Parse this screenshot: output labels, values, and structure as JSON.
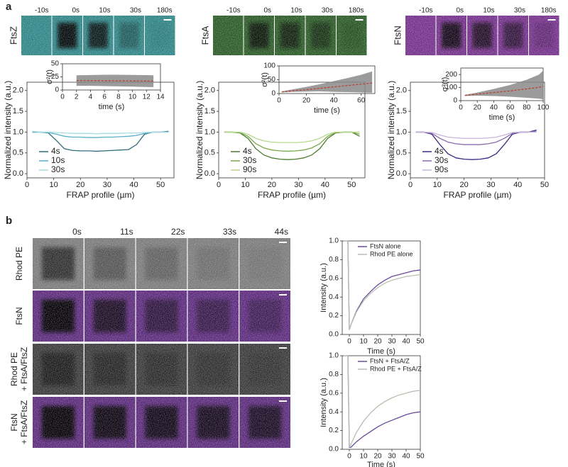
{
  "figure": {
    "panel_labels": [
      "a",
      "b"
    ],
    "panel_a": [
      {
        "name": "FtsZ",
        "color": "#3aa0a4",
        "base": "#2f8486",
        "times": [
          "-10s",
          "0s",
          "10s",
          "30s",
          "180s"
        ]
      },
      {
        "name": "FtsA",
        "color": "#4f8f3a",
        "base": "#2a5a26",
        "times": [
          "-10s",
          "0s",
          "10s",
          "30s",
          "180s"
        ]
      },
      {
        "name": "FtsN",
        "color": "#8a3a9a",
        "base": "#74308a",
        "times": [
          "-10s",
          "0s",
          "10s",
          "30s",
          "180s"
        ]
      }
    ],
    "panel_b": {
      "times": [
        "0s",
        "11s",
        "22s",
        "33s",
        "44s"
      ],
      "rows": [
        {
          "lines": [
            "Rhod PE"
          ],
          "base": "#7a7a7a"
        },
        {
          "lines": [
            "FtsN"
          ],
          "base": "#5c2a7c"
        },
        {
          "lines": [
            "Rhod PE",
            "+ FtsA/FtsZ"
          ],
          "base": "#3a3a3a"
        },
        {
          "lines": [
            "FtsN",
            "+ FtsA/FtsZ"
          ],
          "base": "#5a2a7a"
        }
      ]
    }
  },
  "chart_data": [
    {
      "type": "line",
      "xlabel": "FRAP profile (µm)",
      "ylabel": "Normalized intensity (a.u.)",
      "legend": "lower left",
      "xlim": [
        0,
        55
      ],
      "ylim": [
        -0.1,
        2.2
      ],
      "xticks": [
        0,
        10,
        20,
        30,
        40,
        50
      ],
      "yticks": [
        {
          "value": 0,
          "label": "0.0"
        },
        0.5,
        {
          "value": 1,
          "label": "1.0"
        },
        1.5,
        {
          "value": 2,
          "label": "2.0"
        }
      ],
      "x": [
        2,
        5,
        8,
        11,
        14,
        17,
        20,
        23,
        26,
        29,
        32,
        35,
        38,
        41,
        44,
        47,
        50,
        53
      ],
      "series": [
        {
          "name": "4s",
          "color": "#2e6e78",
          "values": [
            1.0,
            1.0,
            0.98,
            0.8,
            0.6,
            0.56,
            0.55,
            0.55,
            0.54,
            0.55,
            0.56,
            0.57,
            0.58,
            0.7,
            0.95,
            1.0,
            1.0,
            1.02
          ]
        },
        {
          "name": "10s",
          "color": "#5ab0c8",
          "values": [
            1.0,
            1.0,
            0.99,
            0.95,
            0.9,
            0.88,
            0.88,
            0.87,
            0.87,
            0.88,
            0.88,
            0.89,
            0.9,
            0.92,
            0.97,
            1.0,
            1.0,
            1.0
          ]
        },
        {
          "name": "30s",
          "color": "#a8dce6",
          "values": [
            1.02,
            1.0,
            1.0,
            0.99,
            0.98,
            0.97,
            0.97,
            0.97,
            0.96,
            0.97,
            0.97,
            0.97,
            0.98,
            0.98,
            0.99,
            1.0,
            1.0,
            1.0
          ]
        }
      ]
    },
    {
      "type": "line",
      "xlabel": "FRAP profile (µm)",
      "ylabel": "Normalized intensity (a.u.)",
      "legend": "lower left",
      "xlim": [
        0,
        55
      ],
      "ylim": [
        -0.1,
        2.2
      ],
      "xticks": [
        0,
        10,
        20,
        30,
        40,
        50
      ],
      "yticks": [
        {
          "value": 0,
          "label": "0.0"
        },
        0.5,
        {
          "value": 1,
          "label": "1.0"
        },
        1.5,
        {
          "value": 2,
          "label": "2.0"
        }
      ],
      "x": [
        2,
        5,
        8,
        11,
        14,
        17,
        20,
        23,
        26,
        29,
        32,
        35,
        38,
        41,
        44,
        47,
        50,
        53
      ],
      "series": [
        {
          "name": "4s",
          "color": "#4c7a2e",
          "values": [
            1.0,
            1.0,
            0.98,
            0.85,
            0.6,
            0.45,
            0.38,
            0.35,
            0.34,
            0.35,
            0.38,
            0.45,
            0.6,
            0.85,
            0.98,
            1.0,
            1.0,
            0.9
          ]
        },
        {
          "name": "30s",
          "color": "#7aa84c",
          "values": [
            1.0,
            1.0,
            0.99,
            0.9,
            0.72,
            0.62,
            0.57,
            0.55,
            0.54,
            0.55,
            0.57,
            0.62,
            0.72,
            0.9,
            0.99,
            1.0,
            1.0,
            0.95
          ]
        },
        {
          "name": "90s",
          "color": "#b8d88c",
          "values": [
            1.0,
            1.0,
            1.0,
            0.95,
            0.85,
            0.79,
            0.76,
            0.75,
            0.75,
            0.75,
            0.76,
            0.79,
            0.85,
            0.95,
            1.0,
            1.0,
            1.0,
            1.0
          ]
        }
      ]
    },
    {
      "type": "line",
      "xlabel": "FRAP profile (µm)",
      "ylabel": "Normalized intensity (a.u.)",
      "legend": "lower left",
      "xlim": [
        0,
        50
      ],
      "ylim": [
        -0.1,
        2.2
      ],
      "xticks": [
        0,
        10,
        20,
        30,
        40,
        50
      ],
      "yticks": [
        {
          "value": 0,
          "label": "0.0"
        },
        0.5,
        {
          "value": 1,
          "label": "1.0"
        },
        1.5,
        {
          "value": 2,
          "label": "2.0"
        }
      ],
      "x": [
        2,
        5,
        8,
        11,
        14,
        17,
        20,
        23,
        26,
        29,
        32,
        35,
        38,
        41,
        44,
        47
      ],
      "series": [
        {
          "name": "4s",
          "color": "#3c2a80",
          "values": [
            1.0,
            1.0,
            0.95,
            0.7,
            0.48,
            0.38,
            0.35,
            0.34,
            0.35,
            0.38,
            0.48,
            0.7,
            0.95,
            1.0,
            1.0,
            1.05
          ]
        },
        {
          "name": "30s",
          "color": "#8a6aaa",
          "values": [
            1.0,
            1.0,
            0.97,
            0.85,
            0.76,
            0.72,
            0.7,
            0.7,
            0.7,
            0.72,
            0.76,
            0.85,
            0.97,
            1.0,
            1.0,
            1.02
          ]
        },
        {
          "name": "90s",
          "color": "#c8b4d8",
          "values": [
            1.0,
            1.0,
            0.99,
            0.93,
            0.88,
            0.86,
            0.85,
            0.85,
            0.85,
            0.86,
            0.88,
            0.93,
            0.99,
            1.0,
            1.0,
            1.0
          ]
        }
      ]
    },
    {
      "type": "band",
      "xlabel": "time (s)",
      "ylabel": "σ²(t)",
      "xlim": [
        0,
        14
      ],
      "ylim": [
        0,
        50
      ],
      "xticks": [
        0,
        2,
        4,
        6,
        8,
        10,
        12,
        14
      ],
      "yticks": [
        0,
        25,
        50
      ],
      "color": "#c0392b",
      "band_color": "#8a8a8a",
      "x": [
        2,
        4,
        6,
        8,
        10,
        12,
        13
      ],
      "values": [
        18,
        18,
        17.8,
        17.6,
        17.4,
        17.2,
        17
      ],
      "lower": [
        8,
        8,
        7.5,
        7,
        6.5,
        5.8,
        5.5
      ],
      "upper": [
        28,
        28.5,
        29,
        29,
        28.8,
        28.3,
        28
      ]
    },
    {
      "type": "band",
      "xlabel": "time (s)",
      "ylabel": "σ²(t)",
      "xlim": [
        0,
        70
      ],
      "ylim": [
        0,
        100
      ],
      "xticks": [
        0,
        20,
        40,
        60
      ],
      "yticks": [
        0,
        50,
        100
      ],
      "color": "#c0392b",
      "band_color": "#8a8a8a",
      "x": [
        2,
        10,
        20,
        30,
        40,
        50,
        60,
        68
      ],
      "values": [
        6,
        10,
        14,
        19,
        24,
        29,
        34,
        38
      ],
      "lower": [
        4,
        6,
        7,
        8,
        6,
        5,
        4,
        3
      ],
      "upper": [
        8,
        15,
        24,
        34,
        45,
        56,
        68,
        80
      ]
    },
    {
      "type": "band",
      "xlabel": "time (s)",
      "ylabel": "σ²(t)",
      "xlim": [
        0,
        100
      ],
      "ylim": [
        0,
        250
      ],
      "xticks": [
        0,
        20,
        40,
        60,
        80,
        100
      ],
      "yticks": [
        0,
        100,
        200
      ],
      "color": "#c0392b",
      "band_color": "#8a8a8a",
      "x": [
        5,
        20,
        40,
        60,
        80,
        95,
        100
      ],
      "values": [
        40,
        50,
        62,
        75,
        90,
        102,
        110
      ],
      "lower": [
        35,
        38,
        35,
        30,
        22,
        15,
        10
      ],
      "upper": [
        45,
        62,
        90,
        120,
        160,
        200,
        230
      ]
    },
    {
      "type": "line",
      "xlabel": "Time (s)",
      "ylabel": "Intensity (a.u.)",
      "legend": "upper right",
      "xlim": [
        -5,
        50
      ],
      "ylim": [
        0,
        1
      ],
      "xticks": [
        0,
        10,
        20,
        30,
        40,
        50
      ],
      "yticks": [
        {
          "value": 0,
          "label": "0.0"
        },
        0.2,
        0.4,
        0.6,
        0.8,
        {
          "value": 1,
          "label": "1.0"
        }
      ],
      "x": [
        -4,
        -1,
        0,
        1,
        5,
        10,
        15,
        20,
        25,
        30,
        35,
        40,
        45,
        50
      ],
      "series": [
        {
          "name": "FtsN alone",
          "color": "#6a4a9a",
          "values": [
            1,
            1,
            0.05,
            0.1,
            0.25,
            0.38,
            0.46,
            0.53,
            0.58,
            0.62,
            0.64,
            0.66,
            0.68,
            0.69
          ]
        },
        {
          "name": "Rhod PE alone",
          "color": "#b8bfb0",
          "values": [
            1,
            1,
            0.05,
            0.1,
            0.24,
            0.36,
            0.44,
            0.5,
            0.55,
            0.58,
            0.6,
            0.62,
            0.63,
            0.64
          ]
        }
      ]
    },
    {
      "type": "line",
      "xlabel": "Time (s)",
      "ylabel": "Intensity (a.u.)",
      "legend": "upper right",
      "xlim": [
        -5,
        50
      ],
      "ylim": [
        0,
        1
      ],
      "xticks": [
        0,
        10,
        20,
        30,
        40,
        50
      ],
      "yticks": [
        {
          "value": 0,
          "label": "0.0"
        },
        0.2,
        0.4,
        0.6,
        0.8,
        {
          "value": 1,
          "label": "1.0"
        }
      ],
      "x": [
        -4,
        -1,
        0,
        1,
        5,
        10,
        15,
        20,
        25,
        30,
        35,
        40,
        45,
        50
      ],
      "series": [
        {
          "name": "FtsN + FtsA/Z",
          "color": "#6a4a9a",
          "values": [
            1,
            1,
            0.02,
            0.02,
            0.08,
            0.14,
            0.19,
            0.24,
            0.28,
            0.31,
            0.34,
            0.37,
            0.39,
            0.4
          ]
        },
        {
          "name": "Rhod PE + FtsA/Z",
          "color": "#b8bfb0",
          "values": [
            1,
            1,
            0.02,
            0.05,
            0.18,
            0.3,
            0.39,
            0.46,
            0.51,
            0.55,
            0.58,
            0.6,
            0.62,
            0.63
          ]
        }
      ]
    }
  ]
}
